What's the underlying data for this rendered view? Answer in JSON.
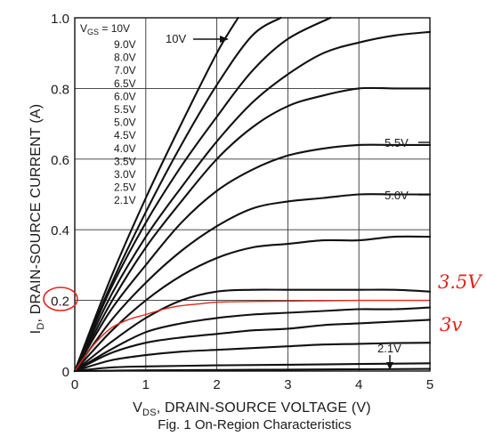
{
  "chart_data": {
    "type": "line",
    "title": "",
    "caption": "Fig. 1  On-Region Characteristics",
    "xlabel": {
      "main": "V",
      "sub": "DS",
      "rest": ", DRAIN-SOURCE VOLTAGE (V)"
    },
    "ylabel": {
      "main": "I",
      "sub": "D",
      "rest": ", DRAIN-SOURCE CURRENT (A)"
    },
    "xlim": [
      0,
      5
    ],
    "ylim": [
      0,
      1.0
    ],
    "xticks": [
      "0",
      "1",
      "2",
      "3",
      "4",
      "5"
    ],
    "yticks": [
      "0",
      "0.2",
      "0.4",
      "0.6",
      "0.8",
      "1.0"
    ],
    "ytick_values": [
      0,
      0.2,
      0.4,
      0.6,
      0.8,
      1.0
    ],
    "grid": true,
    "legend_header": {
      "main": "V",
      "sub": "GS",
      "rest": " = 10V"
    },
    "legend_entries": [
      "9.0V",
      "8.0V",
      "7.0V",
      "6.5V",
      "6.0V",
      "5.5V",
      "5.0V",
      "4.5V",
      "4.0V",
      "3.5V",
      "3.0V",
      "2.5V",
      "2.1V"
    ],
    "curve_labels": [
      "10V",
      "5.5V",
      "5.0V",
      "2.1V"
    ],
    "handwritten": {
      "circle_tick": "0.2",
      "label_a": "3.5V",
      "label_b": "3v"
    },
    "colors": {
      "curve": "#111111",
      "grid": "#333333",
      "handwritten": "#e0261c"
    },
    "series": [
      {
        "name": "10V",
        "x": [
          0,
          0.5,
          1.0,
          1.5,
          2.0,
          2.3
        ],
        "y": [
          0,
          0.26,
          0.49,
          0.7,
          0.9,
          1.0
        ]
      },
      {
        "name": "9.0V",
        "x": [
          0,
          0.5,
          1.0,
          1.5,
          2.0,
          2.5,
          2.9
        ],
        "y": [
          0,
          0.24,
          0.45,
          0.64,
          0.81,
          0.95,
          1.0
        ]
      },
      {
        "name": "8.0V",
        "x": [
          0,
          0.5,
          1.0,
          1.5,
          2.0,
          2.5,
          3.0,
          3.6
        ],
        "y": [
          0,
          0.23,
          0.42,
          0.58,
          0.72,
          0.85,
          0.94,
          1.0
        ]
      },
      {
        "name": "7.0V",
        "x": [
          0,
          0.5,
          1.0,
          1.5,
          2.0,
          2.5,
          3.0,
          3.5,
          4.0,
          4.5,
          5.0
        ],
        "y": [
          0,
          0.21,
          0.38,
          0.52,
          0.65,
          0.76,
          0.84,
          0.9,
          0.93,
          0.95,
          0.96
        ]
      },
      {
        "name": "6.5V",
        "x": [
          0,
          0.5,
          1.0,
          1.5,
          2.0,
          2.5,
          3.0,
          3.5,
          4.0,
          4.5,
          5.0
        ],
        "y": [
          0,
          0.19,
          0.35,
          0.48,
          0.6,
          0.69,
          0.75,
          0.78,
          0.8,
          0.8,
          0.8
        ]
      },
      {
        "name": "6.0V",
        "x": [
          0,
          0.5,
          1.0,
          1.5,
          2.0,
          2.5,
          3.0,
          3.5,
          4.0,
          4.5,
          5.0
        ],
        "y": [
          0,
          0.17,
          0.3,
          0.42,
          0.51,
          0.57,
          0.61,
          0.63,
          0.64,
          0.64,
          0.64
        ]
      },
      {
        "name": "5.5V",
        "x": [
          0,
          0.5,
          1.0,
          1.5,
          2.0,
          2.5,
          3.0,
          3.5,
          4.0,
          4.5,
          5.0
        ],
        "y": [
          0,
          0.14,
          0.25,
          0.34,
          0.41,
          0.46,
          0.48,
          0.49,
          0.5,
          0.5,
          0.5
        ]
      },
      {
        "name": "5.0V",
        "x": [
          0,
          0.5,
          1.0,
          1.5,
          2.0,
          2.5,
          3.0,
          3.5,
          4.0,
          4.5,
          5.0
        ],
        "y": [
          0,
          0.11,
          0.2,
          0.27,
          0.32,
          0.35,
          0.36,
          0.37,
          0.37,
          0.38,
          0.38
        ]
      },
      {
        "name": "4.5V",
        "x": [
          0,
          0.5,
          1.0,
          1.5,
          2.0,
          2.5,
          3.0,
          3.5,
          4.0,
          4.5,
          5.0
        ],
        "y": [
          0,
          0.08,
          0.15,
          0.2,
          0.225,
          0.23,
          0.23,
          0.23,
          0.23,
          0.23,
          0.225
        ]
      },
      {
        "name": "4.0V",
        "x": [
          0,
          0.5,
          1.0,
          1.5,
          2.0,
          2.5,
          3.0,
          3.5,
          4.0,
          4.5,
          5.0
        ],
        "y": [
          0,
          0.06,
          0.11,
          0.135,
          0.15,
          0.16,
          0.165,
          0.17,
          0.175,
          0.175,
          0.18
        ]
      },
      {
        "name": "3.5V",
        "x": [
          0,
          0.5,
          1.0,
          1.5,
          2.0,
          2.5,
          3.0,
          3.5,
          4.0,
          4.5,
          5.0
        ],
        "y": [
          0,
          0.05,
          0.08,
          0.095,
          0.105,
          0.115,
          0.12,
          0.13,
          0.135,
          0.14,
          0.145
        ]
      },
      {
        "name": "3.0V",
        "x": [
          0,
          0.5,
          1.0,
          1.5,
          2.0,
          2.5,
          3.0,
          3.5,
          4.0,
          4.5,
          5.0
        ],
        "y": [
          0,
          0.03,
          0.045,
          0.055,
          0.06,
          0.065,
          0.07,
          0.075,
          0.077,
          0.079,
          0.08
        ]
      },
      {
        "name": "2.5V",
        "x": [
          0,
          0.5,
          1.0,
          2.0,
          3.0,
          4.0,
          5.0
        ],
        "y": [
          0,
          0.01,
          0.013,
          0.016,
          0.018,
          0.02,
          0.022
        ]
      },
      {
        "name": "2.1V",
        "x": [
          0,
          1.0,
          2.0,
          3.0,
          4.0,
          5.0
        ],
        "y": [
          0,
          0.002,
          0.003,
          0.004,
          0.005,
          0.006
        ]
      }
    ],
    "annotation_series": {
      "color": "#e0261c",
      "x": [
        0,
        0.25,
        0.5,
        0.75,
        1.0,
        1.25,
        1.5,
        1.75,
        2.0,
        2.5,
        3.0,
        3.5,
        4.0,
        4.5,
        5.0
      ],
      "y": [
        0,
        0.07,
        0.12,
        0.145,
        0.16,
        0.175,
        0.185,
        0.19,
        0.195,
        0.197,
        0.198,
        0.199,
        0.2,
        0.2,
        0.2
      ]
    }
  }
}
